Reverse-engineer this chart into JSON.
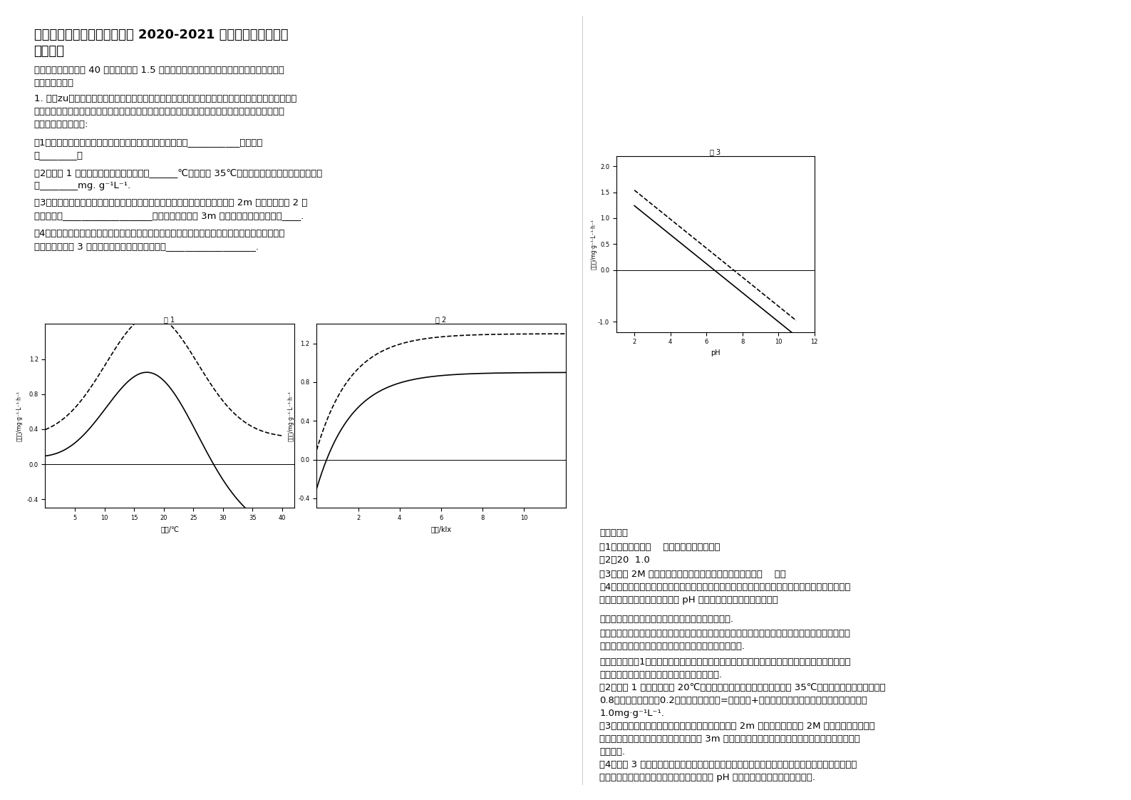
{
  "title_line1": "河南省濮阳市侯庙乡侯庙中学 2020-2021 学年高三生物期末试",
  "title_line2": "卷含解析",
  "section1_title": "一、选择题（本题共 40 小题，每小题 1.5 分。在每小题给出的四个选项中，只有一项是符合",
  "section1_subtitle": "题目要求的。）",
  "q1_text": "1. 茳（zu）草是一种沉水植物，是草食性鱼类的良好天然饲料。为了能充分利用和开发茳草资源，科",
  "q1_text2": "研人员研究了不同因素对茳草光合作用的影响，结果如图（图中实线表示净光合速率，虚线表示真光",
  "q1_text3": "合速率）。分析回答:",
  "q1_1": "（1）茳草叶肉细胞中含较多叶绿素，叶绿素分布在叶绿体的___________，其作用",
  "q1_1b": "是________。",
  "q1_2": "（2）由图 1 可知，茳草生长的最适温度在______℃左右；在 35℃时，茳草每小时呼吸作用耗氧量约",
  "q1_2b": "为________mg. g⁻¹L⁻¹.",
  "q1_3": "（3）通过研究，科研人员建议在实际生产中应通过调节水量使茳草生长于水深 2m 左右，结合图 2 分",
  "q1_3b": "析其依据是___________________，若将水深增加到 3m 以上，茳草的呼吸速率将____.",
  "q1_4": "（4）在实际生产过程中，由于水体流动不畅，生长旺盛的茳草有时突然光合作用能力明显降低，甚",
  "q1_4b": "至衰亡，结合图 3 分析，出现这一现象原因可能是___________________.",
  "fig1_xlabel": "温度/℃",
  "fig1_ylabel": "产氧量/mg·g⁻¹·L⁻¹·h⁻¹",
  "fig1_label": "图 1",
  "fig2_xlabel": "光强/klx",
  "fig2_ylabel": "产氧量/mg·g⁻¹·L⁻¹·h⁻¹",
  "fig2_label": "图 2",
  "fig3_xlabel": "pH",
  "fig3_ylabel": "产氧量/mg·g⁻¹·L⁻¹·h⁻¹",
  "fig3_label": "图 3",
  "answer_title": "参考答案：",
  "ans1": "（1）类囊体薄膜上    吸收、传递和转化光能",
  "ans2": "（2）20  1.0",
  "ans3": "（3）水深 2M 处，光照强度适宜，茳草净光合速率接近最高    降低",
  "ans4": "（4）茳草生长旺盛时，水中大量的氧气被呼吸作用利用，同时水流不畅，氧气得不到及时补充，造",
  "ans4b": "成水中二氧化碳浓度升高，局部 pH 明显升高，使茳草光合速率降低",
  "kao_title": "【考点】光反应、暗反应过程的能量变化和物质变化.",
  "fen_title": "【分析】本题主要考查光合作用及影响光合作用的环境因素等知识，回顾和梳理光合作用及影响光合",
  "fen_text2": "作用的环境因素等知识，认真分析各个问题即可正确作答.",
  "jie_title": "【解答】解：（1）光合作用的色素主要有叶绿素和类胡萝卜素，叶绿素主要分布在叶绿体类囊体薄",
  "jie_text2": "膜上，叶绿素具有相似、传递和转化光能的作用.",
  "jie_text3": "（2）读图 1 分析，茳草在 20℃左右净光合速率达到最高，图中，在 35℃时，茳草真正的光合速率为",
  "jie_text4": "0.8，净光合速率为﹣0.2，真正的光合速率=呼吸速率+净光合速率，所以每小时呼吸作用耗氧量约",
  "jie_text5": "1.0mg·g⁻¹L⁻¹.",
  "jie_text6": "（3）在实际生产中应通过调节水量使茳草生长于水深 2m 左右的原因是水深 2M 处，光照强度适宜，",
  "jie_text7": "茳草净光合速率接近最高。将水深增加到 3m 以上，温度降低，溶氧量也降低，导致茳草的呼吸速率",
  "jie_text8": "将会降低.",
  "jie_text9": "（4）据图 3 分析，茳草生长旺盛时，水中大量的氧气被呼吸作用利用，同时水流不畅，氧气得不到",
  "jie_text10": "及时补充，造成水中二氧化碳浓度升高，局部 pH 明显升高，使茳草光合速率降低.",
  "background_color": "#ffffff",
  "text_color": "#000000",
  "fig_bg": "#f8f8f8"
}
